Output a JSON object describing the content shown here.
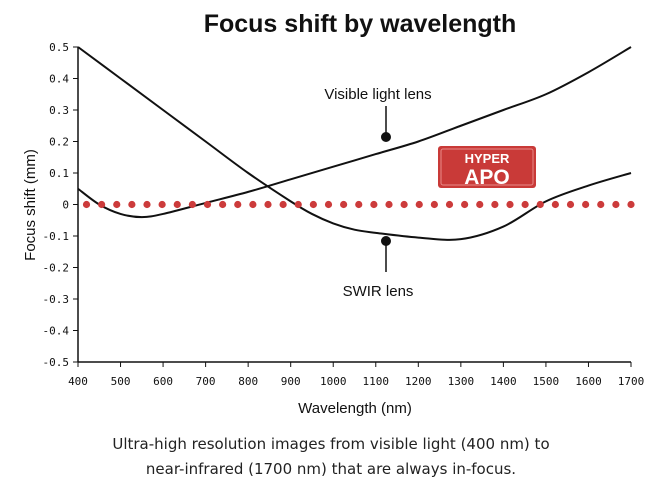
{
  "chart_data": {
    "type": "line",
    "title": "Focus shift by wavelength",
    "xlabel": "Wavelength (nm)",
    "ylabel": "Focus shift (mm)",
    "xlim": [
      400,
      1700
    ],
    "ylim": [
      -0.5,
      0.5
    ],
    "x_ticks": [
      "400",
      "500",
      "600",
      "700",
      "800",
      "900",
      "1000",
      "1100",
      "1200",
      "1300",
      "1400",
      "1500",
      "1600",
      "1700"
    ],
    "y_ticks": [
      "0.5",
      "0.4",
      "0.3",
      "0.2",
      "0.1",
      "0",
      "-0.1",
      "-0.2",
      "-0.3",
      "-0.4",
      "-0.5"
    ],
    "series": [
      {
        "name": "Visible light lens",
        "color": "#111111",
        "x": [
          400,
          500,
          600,
          700,
          800,
          900,
          950,
          1000,
          1050,
          1100,
          1200,
          1300,
          1400,
          1500,
          1600,
          1700
        ],
        "y": [
          0.5,
          0.4,
          0.3,
          0.2,
          0.1,
          0.01,
          -0.03,
          -0.06,
          -0.08,
          -0.09,
          -0.105,
          -0.11,
          -0.07,
          0.01,
          0.06,
          0.1
        ]
      },
      {
        "name": "SWIR lens",
        "color": "#111111",
        "x": [
          400,
          450,
          500,
          550,
          600,
          700,
          800,
          900,
          1000,
          1100,
          1200,
          1300,
          1400,
          1500,
          1600,
          1700
        ],
        "y": [
          0.05,
          0.0,
          -0.03,
          -0.04,
          -0.03,
          0.005,
          0.04,
          0.08,
          0.12,
          0.16,
          0.2,
          0.25,
          0.3,
          0.35,
          0.42,
          0.5
        ]
      },
      {
        "name": "HYPER APO",
        "color": "#cc3b3b",
        "style": "dotted",
        "x": [
          420,
          1700
        ],
        "y": [
          0,
          0
        ]
      }
    ],
    "annotations": {
      "visible_label": "Visible light lens",
      "swir_label": "SWIR lens",
      "badge_top": "HYPER",
      "badge_bottom": "APO"
    },
    "grid": false,
    "legend": "none"
  },
  "caption": {
    "line1": "Ultra-high resolution images from visible light (400 nm) to",
    "line2": "near-infrared (1700 nm) that are always in-focus."
  }
}
